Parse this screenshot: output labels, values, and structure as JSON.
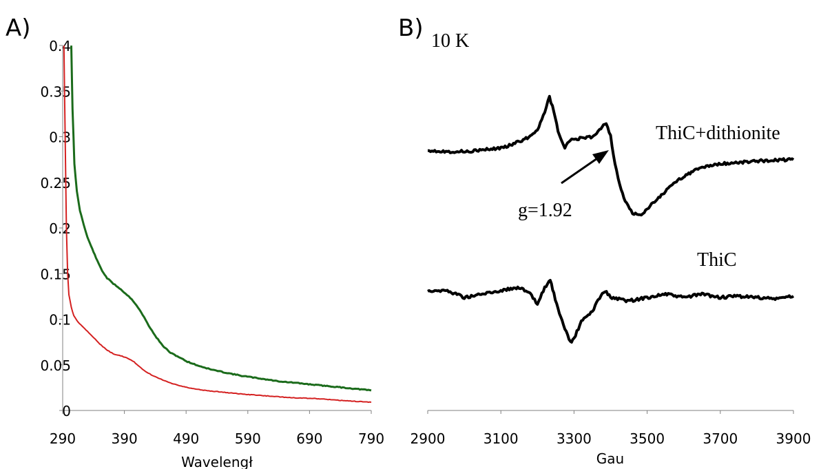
{
  "panels": {
    "a_label": "A)",
    "b_label": "B)"
  },
  "annotations": {
    "temperature": "10 K",
    "temperature_color": "#e0141e",
    "g_value": "g=1.92",
    "upper_trace_label": "ThiC+dithionite",
    "lower_trace_label": "ThiC"
  },
  "colors": {
    "green": "#1b6b1b",
    "red": "#d42020",
    "black": "#000000"
  },
  "chart_data": [
    {
      "type": "line",
      "panel": "A)",
      "xlabel": "Wavelengł",
      "ylabel": "",
      "xlim": [
        290,
        790
      ],
      "ylim": [
        0,
        0.4
      ],
      "x_ticks": [
        "290",
        "390",
        "490",
        "590",
        "690",
        "790"
      ],
      "y_ticks": [
        "0",
        "0.05",
        "0.1",
        "0.15",
        "0.2",
        "0.25",
        "0.3",
        "0.35",
        "0.4"
      ],
      "series": [
        {
          "color": "#1b6b1b",
          "points": [
            [
              304,
              0.4
            ],
            [
              306,
              0.33
            ],
            [
              309,
              0.27
            ],
            [
              313,
              0.24
            ],
            [
              318,
              0.219
            ],
            [
              324,
              0.204
            ],
            [
              330,
              0.19
            ],
            [
              338,
              0.177
            ],
            [
              346,
              0.164
            ],
            [
              354,
              0.153
            ],
            [
              362,
              0.145
            ],
            [
              372,
              0.139
            ],
            [
              382,
              0.134
            ],
            [
              392,
              0.128
            ],
            [
              402,
              0.122
            ],
            [
              412,
              0.113
            ],
            [
              422,
              0.102
            ],
            [
              432,
              0.09
            ],
            [
              442,
              0.08
            ],
            [
              452,
              0.071
            ],
            [
              465,
              0.063
            ],
            [
              480,
              0.058
            ],
            [
              490,
              0.054
            ],
            [
              510,
              0.049
            ],
            [
              530,
              0.045
            ],
            [
              550,
              0.042
            ],
            [
              580,
              0.038
            ],
            [
              610,
              0.035
            ],
            [
              640,
              0.032
            ],
            [
              670,
              0.03
            ],
            [
              700,
              0.028
            ],
            [
              730,
              0.026
            ],
            [
              760,
              0.024
            ],
            [
              790,
              0.022
            ]
          ]
        },
        {
          "color": "#d42020",
          "points": [
            [
              292,
              0.4
            ],
            [
              294,
              0.3
            ],
            [
              296,
              0.2
            ],
            [
              298,
              0.15
            ],
            [
              300,
              0.127
            ],
            [
              304,
              0.113
            ],
            [
              308,
              0.104
            ],
            [
              315,
              0.097
            ],
            [
              322,
              0.092
            ],
            [
              330,
              0.087
            ],
            [
              340,
              0.08
            ],
            [
              350,
              0.073
            ],
            [
              360,
              0.067
            ],
            [
              372,
              0.062
            ],
            [
              384,
              0.06
            ],
            [
              396,
              0.057
            ],
            [
              406,
              0.053
            ],
            [
              414,
              0.048
            ],
            [
              424,
              0.043
            ],
            [
              436,
              0.038
            ],
            [
              450,
              0.034
            ],
            [
              465,
              0.03
            ],
            [
              480,
              0.027
            ],
            [
              500,
              0.024
            ],
            [
              520,
              0.022
            ],
            [
              550,
              0.02
            ],
            [
              580,
              0.018
            ],
            [
              620,
              0.016
            ],
            [
              660,
              0.014
            ],
            [
              700,
              0.013
            ],
            [
              740,
              0.011
            ],
            [
              790,
              0.009
            ]
          ]
        }
      ]
    },
    {
      "type": "line",
      "panel": "B)",
      "xlabel": "Gau",
      "ylabel": "",
      "xlim": [
        2900,
        3900
      ],
      "x_ticks": [
        "2900",
        "3100",
        "3300",
        "3500",
        "3700",
        "3900"
      ],
      "series": [
        {
          "name": "ThiC+dithionite",
          "color": "#000000",
          "points": [
            [
              2900,
              0
            ],
            [
              2950,
              -2
            ],
            [
              3000,
              -2
            ],
            [
              3050,
              0
            ],
            [
              3100,
              3
            ],
            [
              3150,
              12
            ],
            [
              3180,
              20
            ],
            [
              3200,
              30
            ],
            [
              3220,
              55
            ],
            [
              3233,
              78
            ],
            [
              3245,
              55
            ],
            [
              3260,
              20
            ],
            [
              3275,
              3
            ],
            [
              3290,
              15
            ],
            [
              3320,
              17
            ],
            [
              3350,
              19
            ],
            [
              3370,
              30
            ],
            [
              3388,
              40
            ],
            [
              3400,
              20
            ],
            [
              3412,
              -20
            ],
            [
              3425,
              -50
            ],
            [
              3440,
              -75
            ],
            [
              3460,
              -92
            ],
            [
              3480,
              -95
            ],
            [
              3500,
              -85
            ],
            [
              3520,
              -75
            ],
            [
              3550,
              -60
            ],
            [
              3580,
              -45
            ],
            [
              3610,
              -35
            ],
            [
              3650,
              -25
            ],
            [
              3700,
              -20
            ],
            [
              3750,
              -18
            ],
            [
              3800,
              -16
            ],
            [
              3850,
              -14
            ],
            [
              3900,
              -14
            ]
          ]
        },
        {
          "name": "ThiC",
          "color": "#000000",
          "points": [
            [
              2900,
              0
            ],
            [
              2950,
              0
            ],
            [
              2980,
              -5
            ],
            [
              3000,
              -10
            ],
            [
              3050,
              -5
            ],
            [
              3100,
              0
            ],
            [
              3150,
              5
            ],
            [
              3180,
              -5
            ],
            [
              3200,
              -20
            ],
            [
              3220,
              5
            ],
            [
              3235,
              15
            ],
            [
              3245,
              -5
            ],
            [
              3260,
              -35
            ],
            [
              3275,
              -55
            ],
            [
              3290,
              -75
            ],
            [
              3300,
              -70
            ],
            [
              3320,
              -45
            ],
            [
              3350,
              -30
            ],
            [
              3370,
              -10
            ],
            [
              3385,
              0
            ],
            [
              3400,
              -10
            ],
            [
              3450,
              -15
            ],
            [
              3500,
              -10
            ],
            [
              3550,
              -5
            ],
            [
              3600,
              -10
            ],
            [
              3650,
              -5
            ],
            [
              3700,
              -10
            ],
            [
              3750,
              -8
            ],
            [
              3800,
              -10
            ],
            [
              3850,
              -12
            ],
            [
              3900,
              -8
            ]
          ]
        }
      ]
    }
  ]
}
